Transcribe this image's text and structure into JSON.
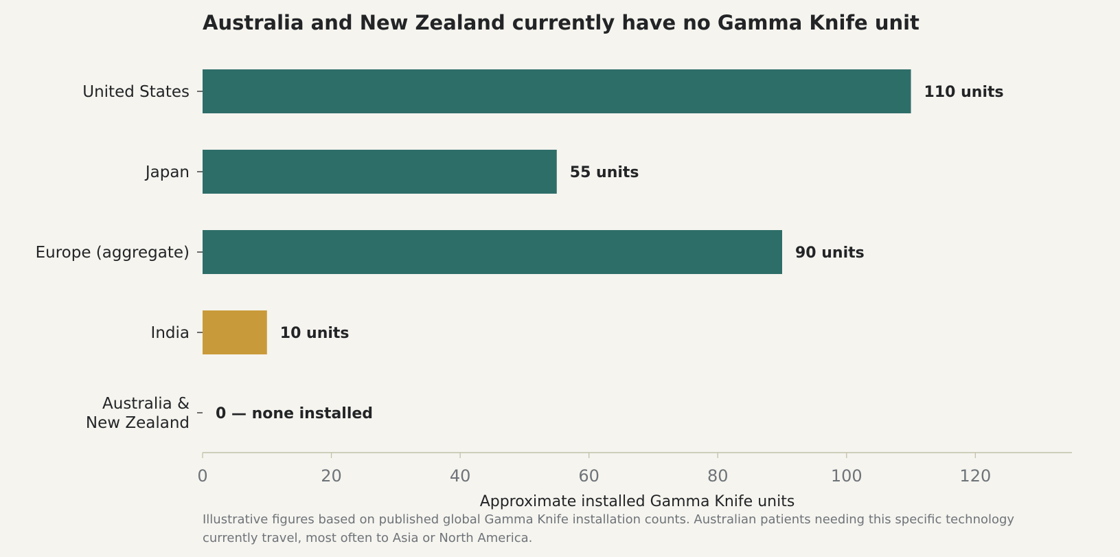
{
  "chart_data": {
    "type": "bar",
    "orientation": "horizontal",
    "title": "Australia and New Zealand currently have no Gamma Knife unit",
    "xlabel": "Approximate installed Gamma Knife units",
    "ylabel": "",
    "xlim": [
      0,
      135
    ],
    "xticks": [
      0,
      20,
      40,
      60,
      80,
      100,
      120
    ],
    "grid": false,
    "categories": [
      "United States",
      "Japan",
      "Europe (aggregate)",
      "India",
      "Australia &\nNew Zealand"
    ],
    "values": [
      110,
      55,
      90,
      10,
      0
    ],
    "value_labels": [
      "110 units",
      "55 units",
      "90 units",
      "10 units",
      "0 — none installed"
    ],
    "colors": [
      "#2e6e69",
      "#2e6e69",
      "#2e6e69",
      "#c99a3a",
      "#2e6e69"
    ],
    "footnote": [
      "Illustrative figures based on published global Gamma Knife installation counts. Australian patients needing this specific technology",
      "currently travel, most often to Asia or North America."
    ]
  }
}
